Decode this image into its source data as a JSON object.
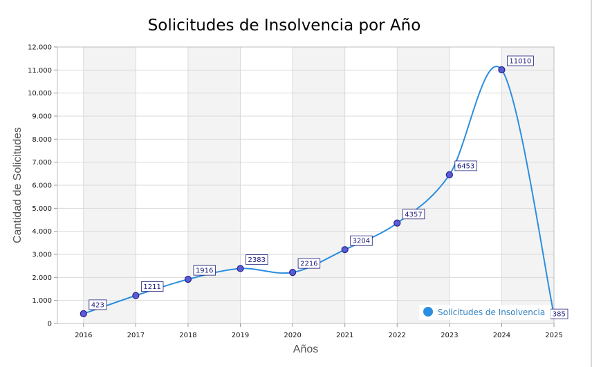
{
  "chart_data": {
    "type": "line",
    "title": "Solicitudes de Insolvencia por Año",
    "xlabel": "Años",
    "ylabel": "Cantidad de Solicitudes",
    "categories": [
      "2016",
      "2017",
      "2018",
      "2019",
      "2020",
      "2021",
      "2022",
      "2023",
      "2024",
      "2025"
    ],
    "series": [
      {
        "name": "Solicitudes de Insolvencia",
        "values": [
          423,
          1211,
          1916,
          2383,
          2216,
          3204,
          4357,
          6453,
          11010,
          385
        ],
        "color": "#2b8ee0"
      }
    ],
    "ylim": [
      0,
      12000
    ],
    "yticks": [
      "0",
      "1.000",
      "2.000",
      "3.000",
      "4.000",
      "5.000",
      "6.000",
      "7.000",
      "8.000",
      "9.000",
      "10.000",
      "11.000",
      "12.000"
    ],
    "smooth": true,
    "grid": true,
    "alternating_bands": true,
    "legend_position": "bottom-right",
    "data_labels": true
  }
}
